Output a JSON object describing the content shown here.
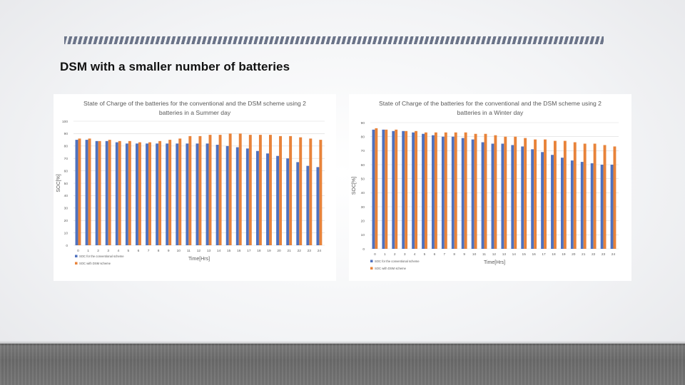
{
  "slide": {
    "title": "DSM with a smaller number of batteries"
  },
  "colors": {
    "conventional": "#4f71be",
    "dsm": "#e8833a",
    "grid": "#d9d9d9",
    "axis_text": "#595959"
  },
  "chart_data": [
    {
      "type": "bar",
      "title": "State of Charge of the batteries for the conventional and the DSM scheme using 2 batteries in a Summer day",
      "title_lines": [
        "State of Charge of the batteries for the conventional and the DSM scheme using 2",
        "batteries in a Summer day"
      ],
      "xlabel": "Time[Hrs]",
      "ylabel": "SOC[%]",
      "ylim": [
        0,
        100
      ],
      "yticks": [
        0,
        10,
        20,
        30,
        40,
        50,
        60,
        70,
        80,
        90,
        100
      ],
      "categories": [
        "0",
        "1",
        "2",
        "3",
        "4",
        "5",
        "6",
        "7",
        "8",
        "9",
        "10",
        "11",
        "12",
        "13",
        "14",
        "15",
        "16",
        "17",
        "18",
        "19",
        "20",
        "21",
        "22",
        "23",
        "24"
      ],
      "legend_position": "bottom-left",
      "grid": true,
      "series": [
        {
          "name": "SOC for the conventional scheme",
          "color": "#4f71be",
          "values": [
            85,
            85,
            84,
            84,
            83,
            82,
            82,
            82,
            82,
            82,
            82,
            82,
            82,
            82,
            81,
            80,
            79,
            78,
            76,
            74,
            72,
            70,
            67,
            64,
            63
          ]
        },
        {
          "name": "SOC with DSM scheme",
          "color": "#e8833a",
          "values": [
            86,
            86,
            84,
            85,
            84,
            84,
            83,
            83,
            84,
            85,
            86,
            88,
            88,
            89,
            89,
            90,
            90,
            89,
            89,
            89,
            88,
            88,
            87,
            86,
            85
          ]
        }
      ]
    },
    {
      "type": "bar",
      "title": "State of Charge of the batteries for the conventional and the DSM scheme using 2 batteries in a Winter day",
      "title_lines": [
        "State of Charge of the batteries for the conventional and the DSM scheme using 2",
        "batteries in a Winter day"
      ],
      "xlabel": "Time[Hrs]",
      "ylabel": "SOC[%]",
      "ylim": [
        0,
        90
      ],
      "yticks": [
        0,
        10,
        20,
        30,
        40,
        50,
        60,
        70,
        80,
        90
      ],
      "categories": [
        "0",
        "1",
        "2",
        "3",
        "4",
        "5",
        "6",
        "7",
        "8",
        "9",
        "10",
        "11",
        "12",
        "13",
        "14",
        "15",
        "16",
        "17",
        "18",
        "19",
        "20",
        "21",
        "22",
        "23",
        "24"
      ],
      "legend_position": "bottom-left",
      "grid": true,
      "series": [
        {
          "name": "SOC for the conventional scheme",
          "color": "#4f71be",
          "values": [
            85,
            85,
            84,
            84,
            83,
            82,
            81,
            80,
            80,
            79,
            78,
            76,
            75,
            75,
            74,
            73,
            71,
            69,
            67,
            65,
            63,
            62,
            61,
            60,
            60
          ]
        },
        {
          "name": "SOC with DSM scheme",
          "color": "#e8833a",
          "values": [
            86,
            85,
            85,
            84,
            84,
            83,
            83,
            83,
            83,
            83,
            82,
            82,
            81,
            80,
            80,
            79,
            78,
            78,
            77,
            77,
            76,
            75,
            75,
            74,
            73
          ]
        }
      ]
    }
  ]
}
